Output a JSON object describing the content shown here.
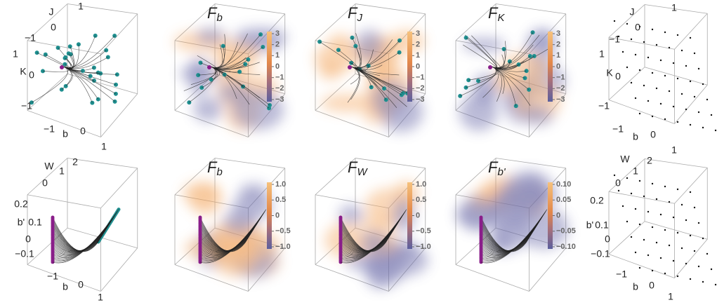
{
  "rows": [
    {
      "panels": [
        {
          "axes": [
            "J",
            "1",
            "0",
            "−1",
            "1",
            "K",
            "0",
            "−1",
            "−1",
            "b",
            "0",
            "1"
          ]
        },
        {
          "title": {
            "base": "F",
            "sub": "b"
          },
          "colorbar": [
            "3",
            "2",
            "1",
            "0",
            "−1",
            "−2",
            "−3"
          ]
        },
        {
          "title": {
            "base": "F",
            "sub": "J"
          },
          "colorbar": [
            "3",
            "2",
            "1",
            "0",
            "−1",
            "−2",
            "−3"
          ]
        },
        {
          "title": {
            "base": "F",
            "sub": "K"
          },
          "colorbar": [
            "3",
            "2",
            "1",
            "0",
            "−1",
            "−2",
            "−3"
          ]
        },
        {
          "axes": [
            "J",
            "1",
            "0",
            "−1",
            "1",
            "K",
            "0",
            "−1",
            "−1",
            "b",
            "0",
            "1"
          ]
        }
      ]
    },
    {
      "panels": [
        {
          "axes": [
            "W",
            "2",
            "1",
            "0",
            "0.2",
            "b'",
            "0.1",
            "0",
            "−0.1",
            "−1",
            "b",
            "0",
            "1"
          ]
        },
        {
          "title": {
            "base": "F",
            "sub": "b"
          },
          "colorbar": [
            "1.0",
            "0.5",
            "0",
            "−0.5",
            "−1.0"
          ]
        },
        {
          "title": {
            "base": "F",
            "sub": "W"
          },
          "colorbar": [
            "1.0",
            "0.5",
            "0",
            "−0.5",
            "−1.0"
          ]
        },
        {
          "title": {
            "base": "F",
            "sub": "b'"
          },
          "colorbar": [
            "0.10",
            "0.05",
            "0",
            "−0.05",
            "−0.10"
          ]
        },
        {
          "axes": [
            "W",
            "2",
            "1",
            "0",
            "0.2",
            "b'",
            "0.1",
            "0",
            "−0.1",
            "−1",
            "b",
            "0",
            "1"
          ]
        }
      ]
    }
  ]
}
